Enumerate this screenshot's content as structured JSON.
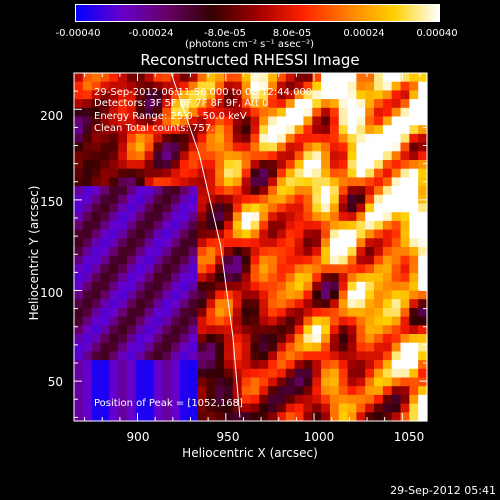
{
  "colorbar": {
    "ticks": [
      "-0.00040",
      "-0.00024",
      "-8.0e-05",
      "8.0e-05",
      "0.00024",
      "0.00040"
    ],
    "units": "(photons cm⁻² s⁻¹ asec⁻²)",
    "range": [
      -0.0004,
      0.0004
    ],
    "colors": [
      "#0000ff",
      "#6600cc",
      "#660066",
      "#330000",
      "#a00000",
      "#ff2000",
      "#ff8000",
      "#ffd000",
      "#ffffff"
    ]
  },
  "annotations": {
    "time_range": "29-Sep-2012 06:11:56.000 to 06:12:44.000",
    "detectors": "Detectors: 3F 5F 6F 7F 8F 9F, Att 0",
    "energy": "Energy Range: 25.0 - 50.0 keV",
    "clean": "Clean   Total counts: 757.",
    "peak": "Position of Peak = [1052,168]"
  },
  "footer": {
    "timestamp": "29-Sep-2012 05:41"
  },
  "chart_data": {
    "type": "heatmap",
    "title": "Reconstructed RHESSI Image",
    "xlabel": "Heliocentric X (arcsec)",
    "ylabel": "Heliocentric Y (arcsec)",
    "xlim": [
      864,
      1064
    ],
    "ylim": [
      28,
      220
    ],
    "x_ticks": [
      900,
      950,
      1000,
      1050
    ],
    "y_ticks": [
      50,
      100,
      150,
      200
    ],
    "x_tick_labels": [
      "900",
      "950",
      "1000",
      "1050"
    ],
    "y_tick_labels": [
      "50",
      "100",
      "150",
      "200"
    ],
    "peak": [
      1052,
      168
    ],
    "limb": {
      "x": [
        919,
        935,
        947,
        954,
        958
      ],
      "y": [
        220,
        175,
        125,
        75,
        30
      ]
    },
    "grid": false
  }
}
